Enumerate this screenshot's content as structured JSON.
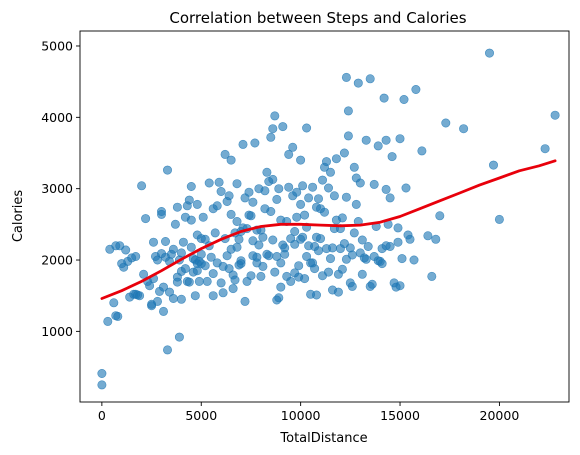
{
  "chart_data": {
    "type": "scatter",
    "title": "Correlation between Steps and Calories",
    "xlabel": "TotalDistance",
    "ylabel": "Calories",
    "xlim": [
      -1100,
      23500
    ],
    "ylim": [
      10,
      5210
    ],
    "xticks": [
      0,
      5000,
      10000,
      15000,
      20000
    ],
    "yticks": [
      1000,
      2000,
      3000,
      4000,
      5000
    ],
    "grid": false,
    "colors": {
      "points": "#1f77b4",
      "trend": "#e8000b"
    },
    "points": [
      [
        0,
        410
      ],
      [
        0,
        250
      ],
      [
        300,
        1140
      ],
      [
        400,
        2150
      ],
      [
        700,
        1220
      ],
      [
        800,
        1210
      ],
      [
        600,
        1400
      ],
      [
        700,
        2200
      ],
      [
        900,
        2200
      ],
      [
        1000,
        1950
      ],
      [
        1100,
        1900
      ],
      [
        1200,
        2140
      ],
      [
        1300,
        1980
      ],
      [
        1400,
        1480
      ],
      [
        1500,
        2030
      ],
      [
        1600,
        1520
      ],
      [
        1700,
        1520
      ],
      [
        1800,
        1510
      ],
      [
        1700,
        2050
      ],
      [
        1900,
        1500
      ],
      [
        2000,
        3040
      ],
      [
        2100,
        1800
      ],
      [
        2200,
        2580
      ],
      [
        2400,
        1640
      ],
      [
        2500,
        1380
      ],
      [
        2500,
        1360
      ],
      [
        2600,
        2250
      ],
      [
        2700,
        2050
      ],
      [
        2800,
        1420
      ],
      [
        2900,
        1560
      ],
      [
        3000,
        2680
      ],
      [
        3000,
        2640
      ],
      [
        3100,
        1620
      ],
      [
        3100,
        1280
      ],
      [
        3200,
        2040
      ],
      [
        3300,
        3260
      ],
      [
        3300,
        740
      ],
      [
        3400,
        1980
      ],
      [
        3500,
        2080
      ],
      [
        3600,
        1460
      ],
      [
        3700,
        2500
      ],
      [
        3800,
        1760
      ],
      [
        3800,
        1690
      ],
      [
        3900,
        2000
      ],
      [
        3900,
        920
      ],
      [
        4000,
        2100
      ],
      [
        4000,
        1450
      ],
      [
        4100,
        2250
      ],
      [
        4200,
        2600
      ],
      [
        4300,
        1700
      ],
      [
        4400,
        1690
      ],
      [
        4500,
        3030
      ],
      [
        4500,
        2180
      ],
      [
        4600,
        2020
      ],
      [
        4700,
        1500
      ],
      [
        4800,
        2780
      ],
      [
        4800,
        2350
      ],
      [
        4900,
        1700
      ],
      [
        5000,
        2300
      ],
      [
        5000,
        1950
      ],
      [
        4300,
        2760
      ],
      [
        4400,
        2840
      ],
      [
        4500,
        2560
      ],
      [
        4700,
        2000
      ],
      [
        4800,
        1950
      ],
      [
        4900,
        1980
      ],
      [
        5100,
        2600
      ],
      [
        5200,
        2290
      ],
      [
        5300,
        1700
      ],
      [
        5400,
        3080
      ],
      [
        5500,
        2040
      ],
      [
        5600,
        1500
      ],
      [
        5700,
        2380
      ],
      [
        5800,
        1960
      ],
      [
        5900,
        3090
      ],
      [
        6000,
        2960
      ],
      [
        6100,
        1540
      ],
      [
        6200,
        3480
      ],
      [
        6300,
        2820
      ],
      [
        6400,
        1880
      ],
      [
        6500,
        3400
      ],
      [
        6500,
        2640
      ],
      [
        6600,
        1790
      ],
      [
        6600,
        1600
      ],
      [
        6700,
        2380
      ],
      [
        6800,
        2180
      ],
      [
        6800,
        3070
      ],
      [
        6900,
        2290
      ],
      [
        7000,
        1950
      ],
      [
        7000,
        2400
      ],
      [
        7100,
        3620
      ],
      [
        7200,
        1420
      ],
      [
        7300,
        1700
      ],
      [
        7400,
        2950
      ],
      [
        7500,
        2620
      ],
      [
        7500,
        1780
      ],
      [
        7600,
        2060
      ],
      [
        7700,
        3640
      ],
      [
        7800,
        2420
      ],
      [
        7800,
        2040
      ],
      [
        7900,
        3000
      ],
      [
        8000,
        1770
      ],
      [
        8100,
        2320
      ],
      [
        8200,
        2970
      ],
      [
        8300,
        3230
      ],
      [
        8400,
        2060
      ],
      [
        8500,
        3720
      ],
      [
        8500,
        2680
      ],
      [
        8600,
        3130
      ],
      [
        8700,
        4020
      ],
      [
        8700,
        1830
      ],
      [
        8800,
        2050
      ],
      [
        8900,
        3000
      ],
      [
        9000,
        1960
      ],
      [
        9000,
        1620
      ],
      [
        9100,
        3870
      ],
      [
        9200,
        2080
      ],
      [
        9300,
        2540
      ],
      [
        9400,
        3020
      ],
      [
        9500,
        2300
      ],
      [
        9600,
        2900
      ],
      [
        9700,
        2400
      ],
      [
        9700,
        1820
      ],
      [
        9800,
        2600
      ],
      [
        9900,
        1760
      ],
      [
        10000,
        3400
      ],
      [
        10000,
        2290
      ],
      [
        10100,
        3040
      ],
      [
        10200,
        1740
      ],
      [
        10300,
        2460
      ],
      [
        10300,
        3850
      ],
      [
        10400,
        2200
      ],
      [
        10500,
        1960
      ],
      [
        10600,
        3020
      ],
      [
        10700,
        2190
      ],
      [
        10800,
        1510
      ],
      [
        10800,
        2320
      ],
      [
        10900,
        2860
      ],
      [
        11000,
        2720
      ],
      [
        11100,
        1780
      ],
      [
        11200,
        3300
      ],
      [
        11300,
        3380
      ],
      [
        11400,
        1830
      ],
      [
        11500,
        2020
      ],
      [
        11600,
        1580
      ],
      [
        11700,
        2900
      ],
      [
        11800,
        3420
      ],
      [
        11900,
        1550
      ],
      [
        12000,
        2440
      ],
      [
        12100,
        1870
      ],
      [
        12200,
        3500
      ],
      [
        12300,
        4560
      ],
      [
        12300,
        2010
      ],
      [
        12400,
        4090
      ],
      [
        12500,
        2170
      ],
      [
        12600,
        1630
      ],
      [
        12700,
        3300
      ],
      [
        12800,
        2780
      ],
      [
        12900,
        4480
      ],
      [
        13000,
        3080
      ],
      [
        13100,
        1800
      ],
      [
        13200,
        2030
      ],
      [
        13300,
        3680
      ],
      [
        13400,
        2190
      ],
      [
        13500,
        4540
      ],
      [
        13600,
        1660
      ],
      [
        13700,
        2050
      ],
      [
        13800,
        2470
      ],
      [
        13900,
        3600
      ],
      [
        14000,
        1980
      ],
      [
        14100,
        1950
      ],
      [
        14200,
        4270
      ],
      [
        14300,
        3680
      ],
      [
        14300,
        2990
      ],
      [
        14400,
        2500
      ],
      [
        14500,
        2190
      ],
      [
        14600,
        3450
      ],
      [
        14800,
        1620
      ],
      [
        14900,
        2450
      ],
      [
        15000,
        3700
      ],
      [
        15000,
        1640
      ],
      [
        15200,
        4250
      ],
      [
        15400,
        2350
      ],
      [
        15500,
        2290
      ],
      [
        15800,
        4390
      ],
      [
        16100,
        3530
      ],
      [
        16400,
        2340
      ],
      [
        16600,
        1770
      ],
      [
        16800,
        2290
      ],
      [
        17000,
        2620
      ],
      [
        17300,
        3920
      ],
      [
        18200,
        3840
      ],
      [
        19500,
        4900
      ],
      [
        19700,
        3330
      ],
      [
        20000,
        2570
      ],
      [
        22300,
        3560
      ],
      [
        22800,
        4030
      ],
      [
        5200,
        1920
      ],
      [
        5600,
        2720
      ],
      [
        5800,
        2760
      ],
      [
        6100,
        1910
      ],
      [
        6300,
        2060
      ],
      [
        6500,
        2150
      ],
      [
        6700,
        1720
      ],
      [
        6900,
        1930
      ],
      [
        7100,
        2450
      ],
      [
        7300,
        2440
      ],
      [
        7600,
        2810
      ],
      [
        7900,
        2210
      ],
      [
        8100,
        1910
      ],
      [
        8300,
        2080
      ],
      [
        8600,
        2280
      ],
      [
        8800,
        1440
      ],
      [
        8900,
        1470
      ],
      [
        9100,
        2210
      ],
      [
        9300,
        1770
      ],
      [
        9500,
        1700
      ],
      [
        9700,
        2220
      ],
      [
        9900,
        1920
      ],
      [
        10100,
        2320
      ],
      [
        10300,
        2050
      ],
      [
        10500,
        1520
      ],
      [
        10700,
        1880
      ],
      [
        10900,
        2130
      ],
      [
        11100,
        3120
      ],
      [
        11300,
        2160
      ],
      [
        11500,
        3230
      ],
      [
        11700,
        2440
      ],
      [
        11900,
        1800
      ],
      [
        12100,
        2590
      ],
      [
        12300,
        2880
      ],
      [
        12500,
        1680
      ],
      [
        12700,
        2380
      ],
      [
        12900,
        2540
      ],
      [
        13100,
        2280
      ],
      [
        13300,
        2010
      ],
      [
        13500,
        1630
      ],
      [
        13700,
        3060
      ],
      [
        13900,
        1990
      ],
      [
        14100,
        2160
      ],
      [
        14300,
        2200
      ],
      [
        14500,
        2870
      ],
      [
        14700,
        1680
      ],
      [
        14900,
        2250
      ],
      [
        15100,
        2020
      ],
      [
        15300,
        3010
      ],
      [
        15700,
        2000
      ],
      [
        2300,
        1700
      ],
      [
        2600,
        1740
      ],
      [
        2800,
        2000
      ],
      [
        3000,
        2090
      ],
      [
        3200,
        2260
      ],
      [
        3400,
        1550
      ],
      [
        3600,
        2150
      ],
      [
        3800,
        2740
      ],
      [
        4000,
        1840
      ],
      [
        4200,
        1880
      ],
      [
        4600,
        1830
      ],
      [
        4800,
        1850
      ],
      [
        5000,
        2080
      ],
      [
        5400,
        2200
      ],
      [
        5600,
        1810
      ],
      [
        6000,
        1680
      ],
      [
        6200,
        2300
      ],
      [
        6400,
        2900
      ],
      [
        6800,
        2540
      ],
      [
        7000,
        1990
      ],
      [
        7200,
        2870
      ],
      [
        7400,
        2630
      ],
      [
        7600,
        2270
      ],
      [
        7800,
        1960
      ],
      [
        8000,
        2420
      ],
      [
        8200,
        2720
      ],
      [
        8400,
        3100
      ],
      [
        8600,
        3840
      ],
      [
        8800,
        2850
      ],
      [
        9000,
        2560
      ],
      [
        9200,
        2170
      ],
      [
        9400,
        3480
      ],
      [
        9600,
        3580
      ],
      [
        9800,
        2950
      ],
      [
        10000,
        2780
      ],
      [
        10200,
        2630
      ],
      [
        10400,
        2870
      ],
      [
        10600,
        1960
      ],
      [
        10800,
        2740
      ],
      [
        11000,
        2300
      ],
      [
        11200,
        2670
      ],
      [
        11400,
        3010
      ],
      [
        11600,
        2170
      ],
      [
        11800,
        2560
      ],
      [
        12000,
        2160
      ],
      [
        12200,
        2230
      ],
      [
        12400,
        3740
      ],
      [
        12600,
        2070
      ],
      [
        12800,
        3150
      ],
      [
        13000,
        2100
      ]
    ],
    "trend": [
      [
        0,
        1460
      ],
      [
        1000,
        1570
      ],
      [
        2000,
        1700
      ],
      [
        3000,
        1850
      ],
      [
        4000,
        2010
      ],
      [
        5000,
        2160
      ],
      [
        6000,
        2290
      ],
      [
        7000,
        2400
      ],
      [
        8000,
        2470
      ],
      [
        9000,
        2500
      ],
      [
        10000,
        2500
      ],
      [
        11000,
        2490
      ],
      [
        12000,
        2480
      ],
      [
        13000,
        2490
      ],
      [
        14000,
        2530
      ],
      [
        15000,
        2610
      ],
      [
        16000,
        2720
      ],
      [
        17000,
        2830
      ],
      [
        18000,
        2940
      ],
      [
        19000,
        3050
      ],
      [
        20000,
        3150
      ],
      [
        21000,
        3250
      ],
      [
        22000,
        3320
      ],
      [
        22800,
        3390
      ]
    ]
  }
}
